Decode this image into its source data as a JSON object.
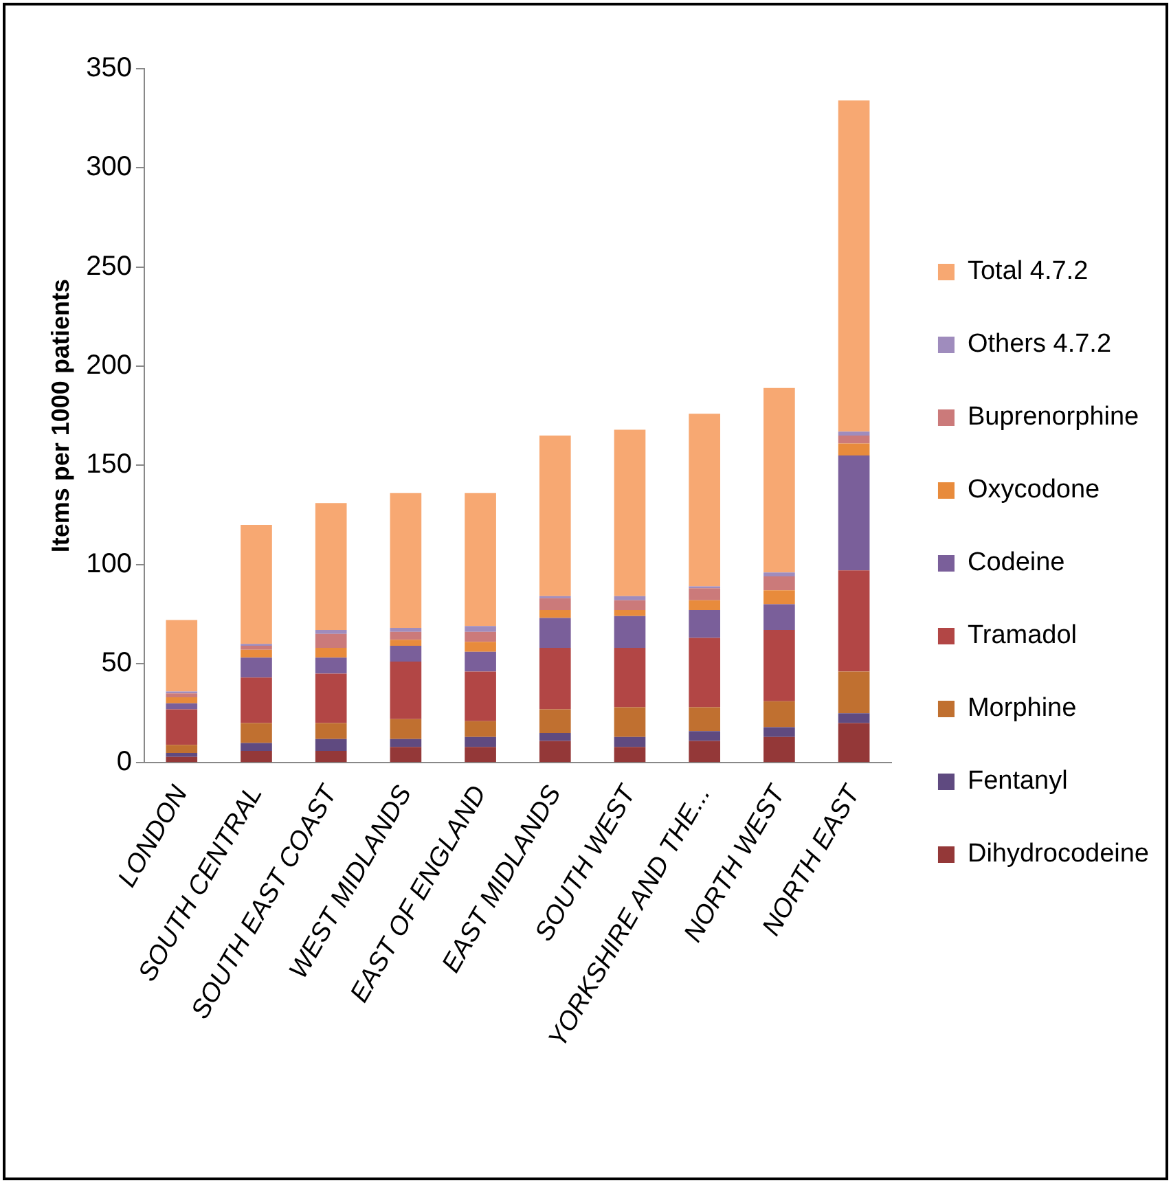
{
  "chart_data": {
    "type": "bar",
    "stacked": true,
    "ylabel": "Items per 1000 patients",
    "categories": [
      "LONDON",
      "SOUTH CENTRAL",
      "SOUTH EAST COAST",
      "WEST MIDLANDS",
      "EAST OF ENGLAND",
      "EAST MIDLANDS",
      "SOUTH WEST",
      "YORKSHIRE AND THE...",
      "NORTH WEST",
      "NORTH EAST"
    ],
    "ylim": [
      0,
      350
    ],
    "yticks": [
      0,
      50,
      100,
      150,
      200,
      250,
      300,
      350
    ],
    "grid": false,
    "legend": "right",
    "series": [
      {
        "name": "Dihydrocodeine",
        "color": "#943838",
        "values": [
          3,
          6,
          6,
          8,
          8,
          11,
          8,
          11,
          13,
          20
        ]
      },
      {
        "name": "Fentanyl",
        "color": "#5f4a80",
        "values": [
          2,
          4,
          6,
          4,
          5,
          4,
          5,
          5,
          5,
          5
        ]
      },
      {
        "name": "Morphine",
        "color": "#c07030",
        "values": [
          4,
          10,
          8,
          10,
          8,
          12,
          15,
          12,
          13,
          21
        ]
      },
      {
        "name": "Tramadol",
        "color": "#b24645",
        "values": [
          18,
          23,
          25,
          29,
          25,
          31,
          30,
          35,
          36,
          51
        ]
      },
      {
        "name": "Codeine",
        "color": "#7a5f9a",
        "values": [
          3,
          10,
          8,
          8,
          10,
          15,
          16,
          14,
          13,
          58
        ]
      },
      {
        "name": "Oxycodone",
        "color": "#e88b3c",
        "values": [
          3,
          4,
          5,
          3,
          5,
          4,
          3,
          5,
          7,
          6
        ]
      },
      {
        "name": "Buprenorphine",
        "color": "#cb7a7a",
        "values": [
          2,
          2,
          7,
          4,
          5,
          6,
          5,
          6,
          7,
          4
        ]
      },
      {
        "name": "Others 4.7.2",
        "color": "#9f8cbd",
        "values": [
          1,
          1,
          2,
          2,
          3,
          1,
          2,
          1,
          2,
          2
        ]
      },
      {
        "name": "Total 4.7.2",
        "color": "#f7a872",
        "values": [
          36,
          60,
          64,
          68,
          67,
          81,
          84,
          87,
          93,
          167
        ]
      }
    ]
  }
}
